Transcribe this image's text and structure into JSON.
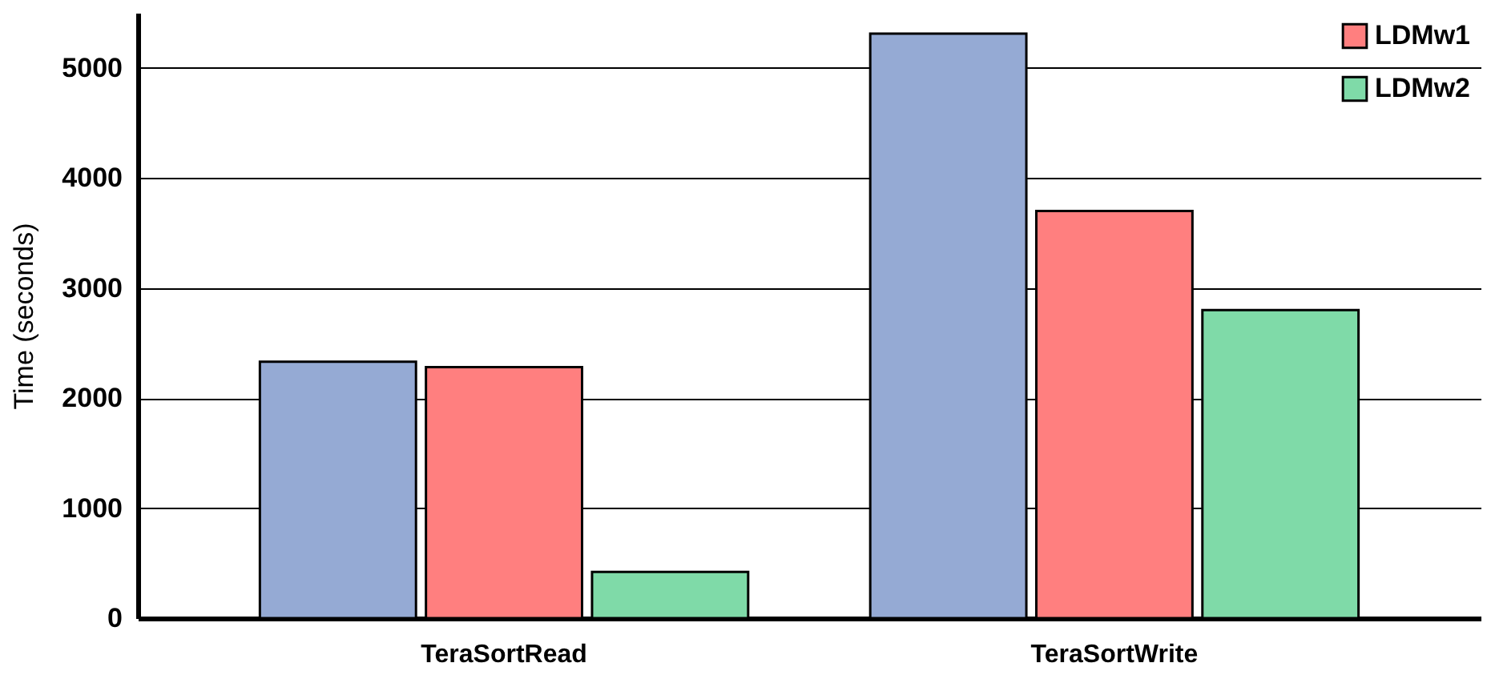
{
  "chart_data": {
    "type": "bar",
    "ylabel": "Time (seconds)",
    "categories": [
      "TeraSortRead",
      "TeraSortWrite"
    ],
    "series": [
      {
        "color": "#95aad4",
        "values": [
          2330,
          5310
        ]
      },
      {
        "name": "LDMw1",
        "color": "#ff7f7f",
        "values": [
          2280,
          3700
        ]
      },
      {
        "name": "LDMw2",
        "color": "#7fdaa8",
        "values": [
          420,
          2800
        ]
      }
    ],
    "ylim": [
      0,
      5500
    ],
    "yticks": [
      0,
      1000,
      2000,
      3000,
      4000,
      5000
    ],
    "grid": "y",
    "legend": "top right"
  }
}
